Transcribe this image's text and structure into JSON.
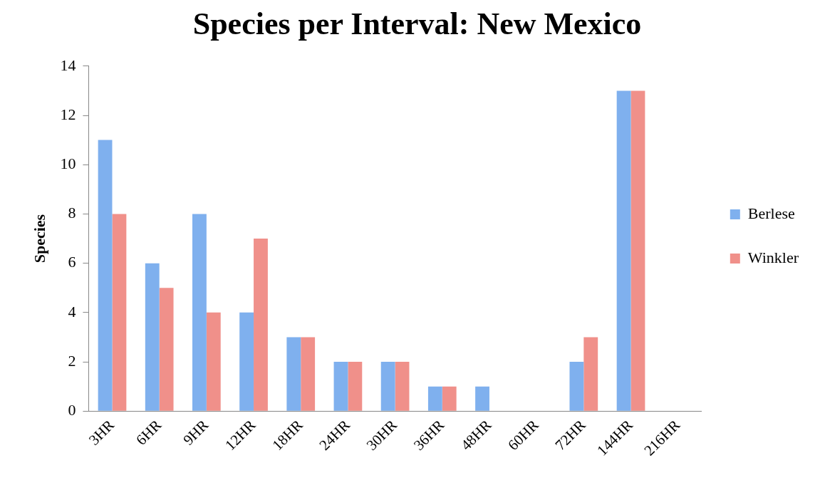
{
  "chart_data": {
    "type": "bar",
    "title": "Species per Interval: New Mexico",
    "ylabel": "Species",
    "categories": [
      "3HR",
      "6HR",
      "9HR",
      "12HR",
      "18HR",
      "24HR",
      "30HR",
      "36HR",
      "48HR",
      "60HR",
      "72HR",
      "144HR",
      "216HR"
    ],
    "series": [
      {
        "name": "Berlese",
        "color": "#7fb0ee",
        "values": [
          11,
          6,
          8,
          4,
          3,
          2,
          2,
          1,
          1,
          0,
          2,
          13,
          0
        ]
      },
      {
        "name": "Winkler",
        "color": "#f0908a",
        "values": [
          8,
          5,
          4,
          7,
          3,
          2,
          2,
          1,
          0,
          0,
          3,
          13,
          0
        ]
      }
    ],
    "ylim": [
      0,
      14
    ],
    "yticks": [
      0,
      2,
      4,
      6,
      8,
      10,
      12,
      14
    ],
    "grid": false,
    "legend": "right"
  }
}
